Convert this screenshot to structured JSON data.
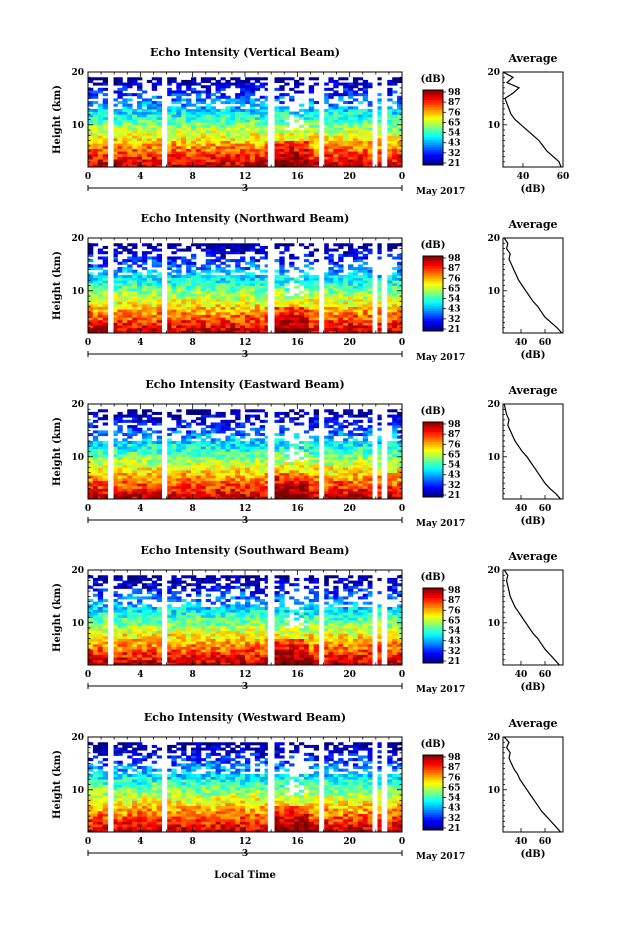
{
  "figure": {
    "xlabel": "Local Time",
    "date_label": "May 2017"
  },
  "chart_data": [
    {
      "type": "heatmap",
      "title": "Echo Intensity (Vertical Beam)",
      "ylabel": "Height (km)",
      "xlim": [
        0,
        24
      ],
      "ylim": [
        2,
        20
      ],
      "xticks": [
        "0",
        "4",
        "8",
        "12",
        "16",
        "20",
        "0"
      ],
      "yticks": [
        "10",
        "20"
      ],
      "day_marker": "3",
      "colorbar": {
        "label": "(dB)",
        "ticks": [
          "98",
          "87",
          "76",
          "65",
          "54",
          "43",
          "32",
          "21"
        ]
      },
      "data_gaps_hours": [
        1.8,
        5.9,
        13.9,
        14.1,
        17.9,
        21.9,
        22.6
      ],
      "profile": {
        "title": "Average",
        "xlabel": "(dB)",
        "xticks": [
          "40",
          "60"
        ],
        "xlim": [
          30,
          60
        ],
        "heights_km": [
          2,
          3,
          4,
          5,
          6,
          7,
          8,
          9,
          10,
          11,
          12,
          13,
          14,
          15,
          16,
          17,
          18,
          19,
          20
        ],
        "values_db": [
          59,
          58,
          55,
          52,
          50,
          48,
          45,
          42,
          39,
          36,
          34,
          33,
          32,
          31,
          35,
          38,
          32,
          35,
          30
        ]
      }
    },
    {
      "type": "heatmap",
      "title": "Echo Intensity (Northward Beam)",
      "ylabel": "Height (km)",
      "xlim": [
        0,
        24
      ],
      "ylim": [
        2,
        20
      ],
      "xticks": [
        "0",
        "4",
        "8",
        "12",
        "16",
        "20",
        "0"
      ],
      "yticks": [
        "10",
        "20"
      ],
      "day_marker": "3",
      "colorbar": {
        "label": "(dB)",
        "ticks": [
          "98",
          "87",
          "76",
          "65",
          "54",
          "43",
          "32",
          "21"
        ]
      },
      "data_gaps_hours": [
        1.8,
        5.9,
        13.9,
        14.1,
        17.9,
        21.9,
        22.6
      ],
      "profile": {
        "title": "Average",
        "xlabel": "(dB)",
        "xticks": [
          "40",
          "60"
        ],
        "xlim": [
          25,
          75
        ],
        "heights_km": [
          2,
          3,
          4,
          5,
          6,
          7,
          8,
          9,
          10,
          11,
          12,
          13,
          14,
          15,
          16,
          17,
          18,
          19,
          20
        ],
        "values_db": [
          74,
          70,
          65,
          60,
          57,
          54,
          50,
          47,
          44,
          41,
          38,
          36,
          34,
          32,
          30,
          31,
          28,
          29,
          26
        ]
      }
    },
    {
      "type": "heatmap",
      "title": "Echo Intensity (Eastward Beam)",
      "ylabel": "Height (km)",
      "xlim": [
        0,
        24
      ],
      "ylim": [
        2,
        20
      ],
      "xticks": [
        "0",
        "4",
        "8",
        "12",
        "16",
        "20",
        "0"
      ],
      "yticks": [
        "10",
        "20"
      ],
      "day_marker": "3",
      "colorbar": {
        "label": "(dB)",
        "ticks": [
          "98",
          "87",
          "76",
          "65",
          "54",
          "43",
          "32",
          "21"
        ]
      },
      "data_gaps_hours": [
        1.8,
        5.9,
        13.9,
        14.1,
        17.9,
        21.9,
        22.6
      ],
      "profile": {
        "title": "Average",
        "xlabel": "(dB)",
        "xticks": [
          "40",
          "60"
        ],
        "xlim": [
          25,
          75
        ],
        "heights_km": [
          2,
          3,
          4,
          5,
          6,
          7,
          8,
          9,
          10,
          11,
          12,
          13,
          14,
          15,
          16,
          17,
          18,
          19,
          20
        ],
        "values_db": [
          73,
          69,
          64,
          60,
          57,
          54,
          51,
          48,
          45,
          41,
          38,
          35,
          33,
          31,
          29,
          30,
          28,
          27,
          26
        ]
      }
    },
    {
      "type": "heatmap",
      "title": "Echo Intensity (Southward Beam)",
      "ylabel": "Height (km)",
      "xlim": [
        0,
        24
      ],
      "ylim": [
        2,
        20
      ],
      "xticks": [
        "0",
        "4",
        "8",
        "12",
        "16",
        "20",
        "0"
      ],
      "yticks": [
        "10",
        "20"
      ],
      "day_marker": "3",
      "colorbar": {
        "label": "(dB)",
        "ticks": [
          "98",
          "87",
          "76",
          "65",
          "54",
          "43",
          "32",
          "21"
        ]
      },
      "data_gaps_hours": [
        1.8,
        5.9,
        13.9,
        14.1,
        17.9,
        21.9,
        22.6
      ],
      "profile": {
        "title": "Average",
        "xlabel": "(dB)",
        "xticks": [
          "40",
          "60"
        ],
        "xlim": [
          25,
          75
        ],
        "heights_km": [
          2,
          3,
          4,
          5,
          6,
          7,
          8,
          9,
          10,
          11,
          12,
          13,
          14,
          15,
          16,
          17,
          18,
          19,
          20
        ],
        "values_db": [
          72,
          68,
          64,
          60,
          57,
          54,
          50,
          47,
          44,
          41,
          38,
          35,
          33,
          31,
          30,
          29,
          28,
          29,
          26
        ]
      }
    },
    {
      "type": "heatmap",
      "title": "Echo Intensity (Westward Beam)",
      "ylabel": "Height (km)",
      "xlim": [
        0,
        24
      ],
      "ylim": [
        2,
        20
      ],
      "xticks": [
        "0",
        "4",
        "8",
        "12",
        "16",
        "20",
        "0"
      ],
      "yticks": [
        "10",
        "20"
      ],
      "day_marker": "3",
      "colorbar": {
        "label": "(dB)",
        "ticks": [
          "98",
          "87",
          "76",
          "65",
          "54",
          "43",
          "32",
          "21"
        ]
      },
      "data_gaps_hours": [
        1.8,
        5.9,
        13.9,
        14.1,
        17.9,
        21.9,
        22.6
      ],
      "profile": {
        "title": "Average",
        "xlabel": "(dB)",
        "xticks": [
          "40",
          "60"
        ],
        "xlim": [
          25,
          75
        ],
        "heights_km": [
          2,
          3,
          4,
          5,
          6,
          7,
          8,
          9,
          10,
          11,
          12,
          13,
          14,
          15,
          16,
          17,
          18,
          19,
          20
        ],
        "values_db": [
          73,
          69,
          65,
          61,
          57,
          54,
          51,
          48,
          45,
          42,
          39,
          37,
          34,
          32,
          30,
          31,
          28,
          30,
          26
        ]
      }
    }
  ]
}
